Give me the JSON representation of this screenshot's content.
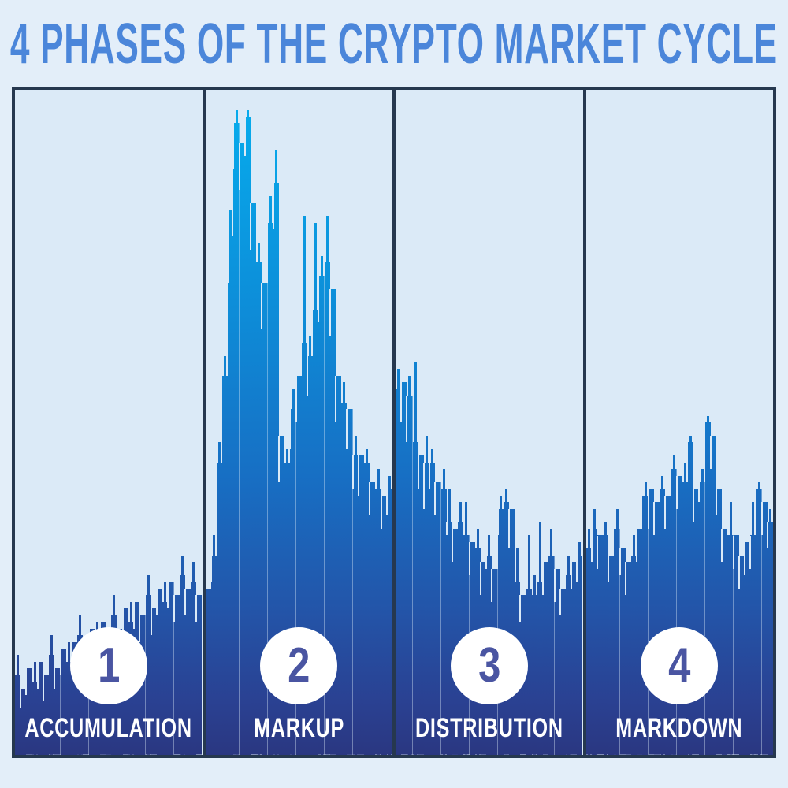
{
  "title": "4 PHASES OF THE CRYPTO MARKET CYCLE",
  "colors": {
    "page_bg": "#e3eef9",
    "panel_bg": "#dbeaf7",
    "border": "#26384f",
    "title_text": "#4b86da",
    "bar_top": "#06aeee",
    "bar_upper": "#0d8ed9",
    "bar_mid": "#176fc4",
    "bar_lower": "#2355a9",
    "bar_deep": "#2a4192",
    "bar_bottom": "#2a3781",
    "circle_bg": "#ffffff",
    "number_text": "#4a55a2",
    "label_text": "#ffffff"
  },
  "chart_data": {
    "type": "bar",
    "title": "4 PHASES OF THE CRYPTO MARKET CYCLE",
    "xlabel": "",
    "ylabel": "",
    "axes_visible": false,
    "grid": false,
    "legend": false,
    "units": "percent of panel height, read from pixel silhouette",
    "bar_format": [
      "body",
      "high_wick",
      "low_notch"
    ],
    "phases": [
      {
        "number": "1",
        "label": "ACCUMULATION",
        "bars": [
          [
            12,
            15,
            12
          ],
          [
            10,
            10,
            7
          ],
          [
            13,
            13,
            9
          ],
          [
            11,
            14,
            11
          ],
          [
            14,
            14,
            10
          ],
          [
            12,
            12,
            8
          ],
          [
            15,
            18,
            15
          ],
          [
            13,
            13,
            10
          ],
          [
            16,
            16,
            12
          ],
          [
            14,
            17,
            14
          ],
          [
            17,
            17,
            13
          ],
          [
            18,
            21,
            18
          ],
          [
            15,
            15,
            11
          ],
          [
            19,
            19,
            15
          ],
          [
            17,
            20,
            17
          ],
          [
            20,
            20,
            16
          ],
          [
            18,
            18,
            14
          ],
          [
            21,
            24,
            21
          ],
          [
            19,
            19,
            15
          ],
          [
            22,
            22,
            18
          ],
          [
            20,
            23,
            20
          ],
          [
            23,
            23,
            19
          ],
          [
            21,
            21,
            17
          ],
          [
            24,
            27,
            24
          ],
          [
            22,
            22,
            18
          ],
          [
            25,
            25,
            21
          ],
          [
            23,
            26,
            23
          ],
          [
            26,
            26,
            22
          ],
          [
            24,
            24,
            20
          ],
          [
            27,
            30,
            27
          ],
          [
            25,
            25,
            21
          ],
          [
            26,
            29,
            26
          ],
          [
            24,
            24,
            20
          ]
        ]
      },
      {
        "number": "2",
        "label": "MARKUP",
        "bars": [
          [
            25,
            25,
            21
          ],
          [
            30,
            33,
            26
          ],
          [
            44,
            47,
            40
          ],
          [
            57,
            60,
            57
          ],
          [
            78,
            82,
            71
          ],
          [
            95,
            97,
            88
          ],
          [
            92,
            92,
            85
          ],
          [
            96,
            97,
            90
          ],
          [
            83,
            83,
            76
          ],
          [
            74,
            77,
            74
          ],
          [
            71,
            71,
            64
          ],
          [
            80,
            84,
            80
          ],
          [
            86,
            91,
            79
          ],
          [
            48,
            48,
            41
          ],
          [
            44,
            46,
            44
          ],
          [
            52,
            55,
            46
          ],
          [
            57,
            57,
            50
          ],
          [
            62,
            81,
            62
          ],
          [
            60,
            63,
            54
          ],
          [
            67,
            80,
            67
          ],
          [
            72,
            75,
            65
          ],
          [
            74,
            81,
            74
          ],
          [
            70,
            70,
            63
          ],
          [
            57,
            57,
            50
          ],
          [
            53,
            56,
            53
          ],
          [
            52,
            52,
            46
          ],
          [
            45,
            48,
            40
          ],
          [
            45,
            45,
            39
          ],
          [
            44,
            46,
            44
          ],
          [
            41,
            41,
            36
          ],
          [
            40,
            43,
            40
          ],
          [
            39,
            39,
            34
          ],
          [
            40,
            42,
            36
          ]
        ]
      },
      {
        "number": "3",
        "label": "DISTRIBUTION",
        "bars": [
          [
            55,
            58,
            55
          ],
          [
            56,
            56,
            50
          ],
          [
            54,
            57,
            47
          ],
          [
            47,
            59,
            47
          ],
          [
            45,
            45,
            40
          ],
          [
            44,
            48,
            37
          ],
          [
            44,
            46,
            40
          ],
          [
            41,
            41,
            36
          ],
          [
            40,
            43,
            40
          ],
          [
            35,
            40,
            33
          ],
          [
            34,
            34,
            29
          ],
          [
            35,
            38,
            35
          ],
          [
            33,
            38,
            33
          ],
          [
            32,
            32,
            27
          ],
          [
            31,
            34,
            31
          ],
          [
            29,
            29,
            24
          ],
          [
            30,
            33,
            28
          ],
          [
            28,
            28,
            23
          ],
          [
            37,
            39,
            33
          ],
          [
            38,
            40,
            38
          ],
          [
            37,
            37,
            31
          ],
          [
            26,
            31,
            26
          ],
          [
            24,
            24,
            20
          ],
          [
            25,
            33,
            25
          ],
          [
            24,
            27,
            24
          ],
          [
            26,
            35,
            26
          ],
          [
            29,
            29,
            24
          ],
          [
            30,
            34,
            30
          ],
          [
            28,
            28,
            23
          ],
          [
            25,
            25,
            21
          ],
          [
            27,
            30,
            27
          ],
          [
            29,
            29,
            25
          ],
          [
            30,
            32,
            26
          ]
        ]
      },
      {
        "number": "4",
        "label": "MARKDOWN",
        "bars": [
          [
            31,
            34,
            31
          ],
          [
            34,
            37,
            29
          ],
          [
            33,
            33,
            28
          ],
          [
            33,
            35,
            33
          ],
          [
            30,
            30,
            26
          ],
          [
            34,
            37,
            34
          ],
          [
            31,
            31,
            27
          ],
          [
            29,
            29,
            24
          ],
          [
            30,
            33,
            30
          ],
          [
            34,
            34,
            29
          ],
          [
            39,
            41,
            39
          ],
          [
            40,
            40,
            34
          ],
          [
            38,
            38,
            33
          ],
          [
            40,
            42,
            40
          ],
          [
            39,
            39,
            34
          ],
          [
            43,
            45,
            43
          ],
          [
            42,
            42,
            37
          ],
          [
            41,
            44,
            41
          ],
          [
            47,
            48,
            47
          ],
          [
            40,
            40,
            35
          ],
          [
            41,
            43,
            38
          ],
          [
            50,
            51,
            50
          ],
          [
            48,
            48,
            43
          ],
          [
            40,
            40,
            36
          ],
          [
            34,
            34,
            29
          ],
          [
            33,
            38,
            33
          ],
          [
            33,
            33,
            28
          ],
          [
            30,
            30,
            25
          ],
          [
            32,
            32,
            27
          ],
          [
            33,
            38,
            28
          ],
          [
            40,
            41,
            40
          ],
          [
            38,
            38,
            33
          ],
          [
            35,
            37,
            31
          ]
        ]
      }
    ]
  }
}
